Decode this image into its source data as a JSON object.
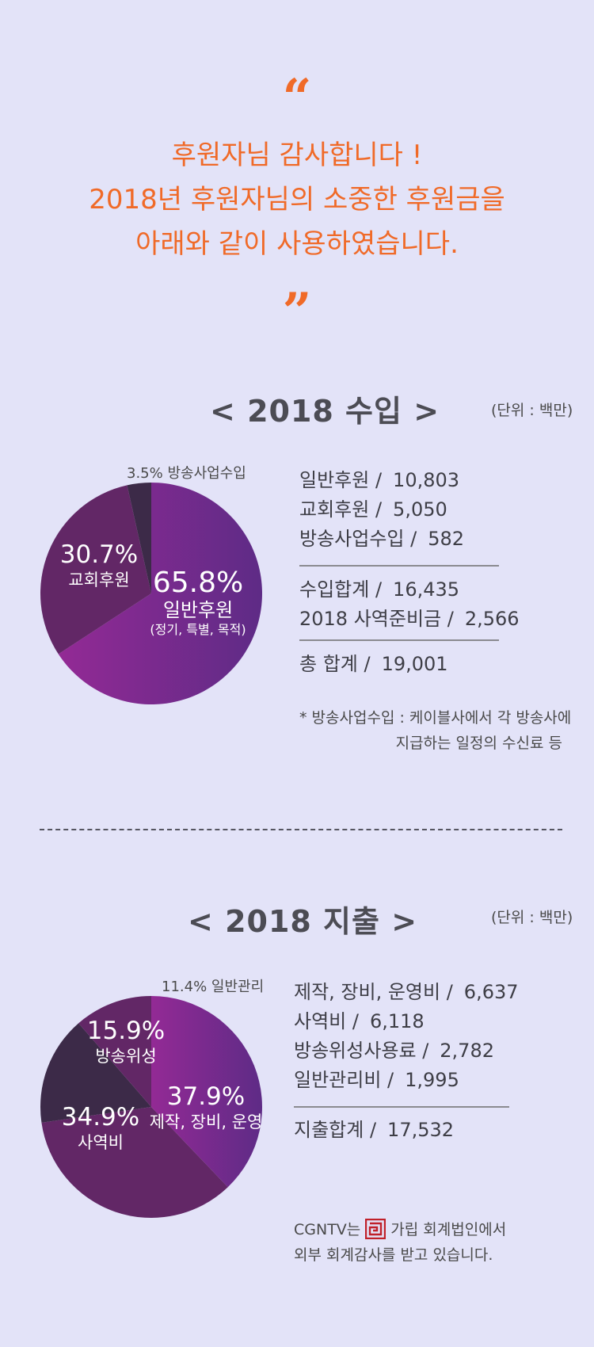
{
  "headline": {
    "lines": [
      "후원자님 감사합니다 !",
      "2018년 후원자님의 소중한 후원금을",
      "아래와 같이 사용하였습니다."
    ]
  },
  "colors": {
    "accent": "#f06a28",
    "slice_purple_a": "#8b2a9a",
    "slice_purple_b": "#5f2c7c",
    "slice_purple_c": "#622766",
    "slice_dark": "#3c2a48"
  },
  "income": {
    "title": "< 2018 수입 >",
    "unit": "(단위 : 백만)",
    "outside_label": "3.5% 방송사업수입",
    "slice_labels": [
      {
        "pct": "65.8%",
        "name": "일반후원",
        "sub": "(정기, 특별, 목적)"
      },
      {
        "pct": "30.7%",
        "name": "교회후원"
      }
    ],
    "items": [
      {
        "label": "일반후원 /",
        "value": "10,803"
      },
      {
        "label": "교회후원 /",
        "value": "5,050"
      },
      {
        "label": "방송사업수입 /",
        "value": "582"
      }
    ],
    "subtotals": [
      {
        "label": "수입합계 /",
        "value": "16,435"
      },
      {
        "label": "2018 사역준비금 /",
        "value": "2,566"
      }
    ],
    "total": {
      "label": "총 합계 /",
      "value": "19,001"
    },
    "note_line1": "* 방송사업수입 : 케이블사에서 각 방송사에",
    "note_line2": "지급하는 일정의 수신료 등"
  },
  "expense": {
    "title": "< 2018 지출 >",
    "unit": "(단위 : 백만)",
    "outside_label": "11.4% 일반관리",
    "slice_labels": [
      {
        "pct": "37.9%",
        "name": "제작, 장비, 운영"
      },
      {
        "pct": "34.9%",
        "name": "사역비"
      },
      {
        "pct": "15.9%",
        "name": "방송위성"
      }
    ],
    "items": [
      {
        "label": "제작, 장비, 운영비 /",
        "value": "6,637"
      },
      {
        "label": "사역비 /",
        "value": "6,118"
      },
      {
        "label": "방송위성사용료 /",
        "value": "2,782"
      },
      {
        "label": "일반관리비 /",
        "value": "1,995"
      }
    ],
    "total": {
      "label": "지출합계 /",
      "value": "17,532"
    },
    "audit_pre": "CGNTV는",
    "audit_post": "가립 회계법인에서",
    "audit_line2": "외부 회계감사를 받고 있습니다.",
    "logo_icon": "garip-logo-icon"
  },
  "chart_data": [
    {
      "type": "pie",
      "title": "< 2018 수입 >",
      "categories": [
        "일반후원",
        "교회후원",
        "방송사업수입"
      ],
      "values": [
        65.8,
        30.7,
        3.5
      ],
      "start_angle_deg": 0,
      "colors": [
        "#8b2a9a",
        "#622766",
        "#3c2a48"
      ]
    },
    {
      "type": "pie",
      "title": "< 2018 지출 >",
      "categories": [
        "제작, 장비, 운영",
        "사역비",
        "방송위성",
        "일반관리"
      ],
      "values": [
        37.9,
        34.9,
        15.9,
        11.4
      ],
      "start_angle_deg": 0,
      "colors": [
        "#8b2a9a",
        "#622766",
        "#3c2a48",
        "#622766"
      ]
    }
  ]
}
